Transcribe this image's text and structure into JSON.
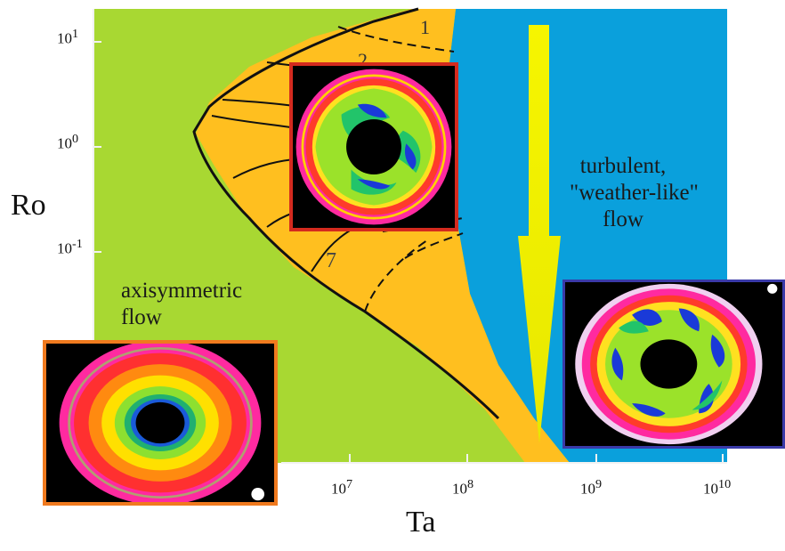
{
  "axes": {
    "y_title": "Ro",
    "x_title": "Ta",
    "y_ticks": [
      {
        "base": "10",
        "exp": "1"
      },
      {
        "base": "10",
        "exp": "0"
      },
      {
        "base": "10",
        "exp": "-1"
      }
    ],
    "x_ticks": [
      {
        "base": "10",
        "exp": "7"
      },
      {
        "base": "10",
        "exp": "8"
      },
      {
        "base": "10",
        "exp": "9"
      },
      {
        "base": "10",
        "exp": "10"
      }
    ]
  },
  "regions": {
    "axisymmetric": {
      "line1": "axisymmetric",
      "line2": "flow",
      "color": "#a8d832"
    },
    "transition": {
      "color": "#ffbf1f"
    },
    "turbulent": {
      "line1": "turbulent,",
      "line2": "\"weather-like\"",
      "line3": "flow",
      "color": "#0aa0dc"
    }
  },
  "curve_numbers": [
    "1",
    "2",
    "7"
  ],
  "arrow_color": "#f6f500",
  "insets": {
    "regular_wave": {
      "border_color": "#d42a1e"
    },
    "axisymmetric": {
      "border_color": "#f07a1e"
    },
    "turbulent": {
      "border_color": "#3a3aa8"
    }
  }
}
